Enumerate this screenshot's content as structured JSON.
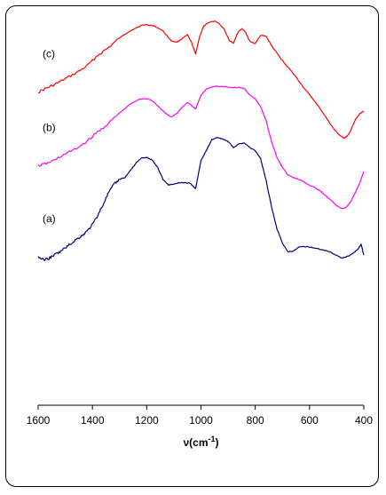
{
  "chart_data": {
    "type": "line",
    "title": "",
    "xlabel": "ν(cm",
    "xlabel_superscript": "-1",
    "xlabel_suffix": ")",
    "ylabel": "",
    "xlim": [
      1600,
      400
    ],
    "ylim": [
      0,
      100
    ],
    "x_reversed": true,
    "y_ticks_visible": false,
    "grid": false,
    "legend": "none",
    "x_ticks": [
      1600,
      1400,
      1200,
      1000,
      800,
      600,
      400
    ],
    "series": [
      {
        "name": "(c)",
        "color": "#ff0000",
        "x": [
          1600,
          1570,
          1540,
          1500,
          1460,
          1420,
          1380,
          1340,
          1300,
          1260,
          1220,
          1200,
          1170,
          1140,
          1110,
          1090,
          1070,
          1050,
          1035,
          1020,
          1005,
          990,
          970,
          950,
          935,
          915,
          895,
          880,
          865,
          850,
          835,
          820,
          800,
          780,
          760,
          740,
          710,
          680,
          650,
          620,
          590,
          560,
          530,
          510,
          490,
          475,
          465,
          455,
          445,
          430,
          415,
          400
        ],
        "y": [
          79.7,
          80.7,
          81.6,
          83.1,
          84.6,
          86.4,
          89.1,
          91.1,
          93.5,
          95.4,
          96.7,
          96.9,
          96.5,
          95.3,
          92.8,
          92.4,
          93.3,
          94.3,
          92.4,
          89.4,
          93.9,
          96.5,
          97.5,
          97.8,
          97.3,
          95.8,
          92.8,
          92.2,
          94.8,
          95.9,
          94.9,
          92.6,
          92.1,
          94.2,
          93.9,
          91.6,
          88.6,
          86.1,
          83.6,
          80.7,
          78.2,
          75.4,
          72.3,
          70.3,
          68.8,
          68.0,
          68.3,
          69.0,
          70.5,
          72.8,
          74.2,
          74.9
        ]
      },
      {
        "name": "(b)",
        "color": "#ff00ff",
        "x": [
          1600,
          1570,
          1540,
          1500,
          1460,
          1420,
          1380,
          1340,
          1300,
          1260,
          1230,
          1210,
          1190,
          1170,
          1150,
          1130,
          1110,
          1090,
          1070,
          1050,
          1035,
          1020,
          1000,
          980,
          950,
          920,
          890,
          860,
          840,
          820,
          800,
          780,
          760,
          740,
          720,
          700,
          680,
          660,
          640,
          620,
          600,
          580,
          560,
          540,
          520,
          500,
          480,
          465,
          450,
          430,
          415,
          400
        ],
        "y": [
          61.0,
          61.5,
          62.4,
          64.0,
          65.3,
          67.2,
          69.6,
          71.8,
          74.4,
          76.7,
          77.8,
          78.1,
          77.9,
          77.0,
          75.5,
          74.3,
          73.4,
          74.2,
          75.8,
          77.1,
          76.3,
          75.4,
          78.9,
          80.6,
          81.2,
          81.1,
          80.9,
          80.9,
          80.6,
          79.0,
          78.0,
          76.0,
          72.4,
          67.1,
          63.1,
          60.6,
          58.6,
          58.0,
          57.5,
          56.8,
          56.0,
          55.4,
          54.5,
          53.3,
          52.1,
          50.8,
          50.0,
          50.4,
          51.6,
          54.4,
          56.5,
          59.5
        ]
      },
      {
        "name": "(a)",
        "color": "#000080",
        "x": [
          1600,
          1580,
          1560,
          1540,
          1520,
          1500,
          1480,
          1460,
          1440,
          1420,
          1400,
          1380,
          1360,
          1340,
          1320,
          1300,
          1280,
          1260,
          1240,
          1220,
          1200,
          1180,
          1160,
          1140,
          1120,
          1100,
          1080,
          1060,
          1040,
          1020,
          1000,
          980,
          960,
          940,
          920,
          900,
          880,
          860,
          840,
          820,
          800,
          780,
          760,
          740,
          720,
          700,
          680,
          660,
          640,
          620,
          600,
          580,
          560,
          540,
          520,
          500,
          480,
          460,
          440,
          420,
          410,
          400
        ],
        "y": [
          37.8,
          37.0,
          37.4,
          38.3,
          39.0,
          40.1,
          41.1,
          42.2,
          43.1,
          44.3,
          46.0,
          48.4,
          51.2,
          54.2,
          56.3,
          57.5,
          58.0,
          59.8,
          61.6,
          62.9,
          63.1,
          62.4,
          60.6,
          57.5,
          56.1,
          56.3,
          56.6,
          56.7,
          56.5,
          55.1,
          62.4,
          64.9,
          67.6,
          68.2,
          67.8,
          67.1,
          65.6,
          66.5,
          66.8,
          65.6,
          64.8,
          62.7,
          57.2,
          50.5,
          44.9,
          41.3,
          39.0,
          39.2,
          40.2,
          40.4,
          40.3,
          40.0,
          39.7,
          39.4,
          38.9,
          38.1,
          37.5,
          37.9,
          38.6,
          39.9,
          41.0,
          38.2
        ]
      }
    ]
  }
}
